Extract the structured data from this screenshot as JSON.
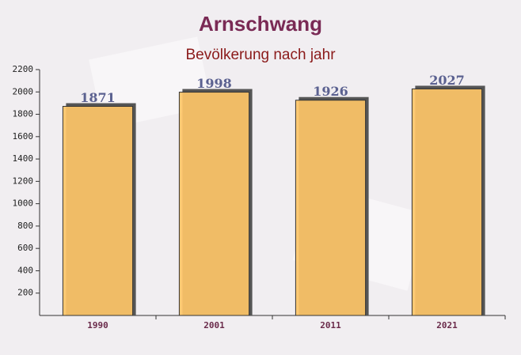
{
  "chart_data": {
    "type": "bar",
    "title": "Arnschwang",
    "subtitle": "Bevölkerung nach jahr",
    "categories": [
      "1990",
      "2001",
      "2011",
      "2021"
    ],
    "values": [
      1871,
      1998,
      1926,
      2027
    ],
    "color": "#fec668",
    "ylim": [
      0,
      2200
    ],
    "yticks": [
      200,
      400,
      600,
      800,
      1000,
      1200,
      1400,
      1600,
      1800,
      2000,
      2200
    ]
  }
}
